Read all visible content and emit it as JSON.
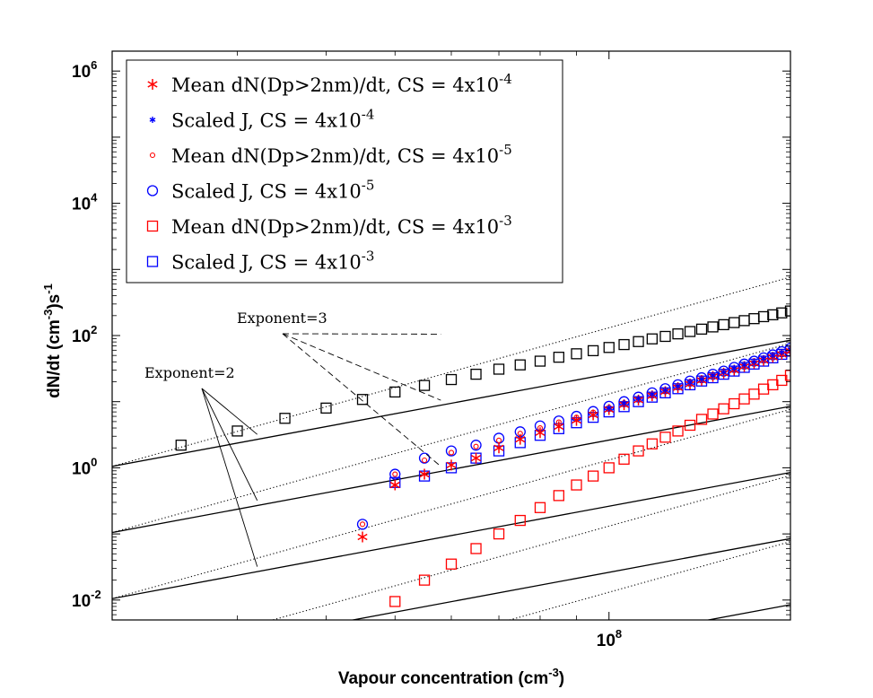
{
  "chart_data": {
    "type": "scatter",
    "xscale": "log",
    "yscale": "log",
    "xlim": [
      20000000,
      180000000
    ],
    "ylim": [
      0.005,
      2000000
    ],
    "xlabel": "Vapour concentration (cm-3)",
    "xlabel_parts": {
      "pre": "Vapour concentration (cm",
      "sup": "-3",
      "post": ")"
    },
    "ylabel": "dN/dt (cm-3)s-1",
    "ylabel_parts": {
      "pre": "dN/dt (cm",
      "sup1": "-3",
      "mid": ")s",
      "sup2": "-1"
    },
    "y_ticks": [
      {
        "value": 0.01,
        "base": "10",
        "exp": "-2"
      },
      {
        "value": 1,
        "base": "10",
        "exp": "0"
      },
      {
        "value": 100,
        "base": "10",
        "exp": "2"
      },
      {
        "value": 10000,
        "base": "10",
        "exp": "4"
      },
      {
        "value": 1000000,
        "base": "10",
        "exp": "6"
      }
    ],
    "x_ticks": [
      {
        "value": 100000000,
        "base": "10",
        "exp": "8"
      }
    ],
    "legend_position": "top-left",
    "series": [
      {
        "name": "Mean dN(Dp>2nm)/dt, CS = 4x10-4",
        "label_pre": "Mean dN(Dp>2nm)/dt, CS = 4x10",
        "label_sup": "-4",
        "marker": "asterisk",
        "color": "#ff0000",
        "x": [
          45000000,
          50000000,
          55000000,
          60000000,
          65000000,
          70000000,
          75000000,
          80000000,
          85000000,
          90000000,
          95000000,
          100000000,
          105000000,
          110000000,
          115000000,
          120000000,
          125000000,
          130000000,
          135000000,
          140000000,
          145000000,
          150000000,
          155000000,
          160000000,
          165000000,
          170000000,
          175000000,
          180000000
        ],
        "y": [
          0.09,
          0.55,
          0.8,
          1.1,
          1.4,
          2.0,
          2.7,
          3.4,
          4.2,
          5.2,
          6.3,
          7.6,
          9.0,
          10.6,
          12.3,
          14.2,
          16.3,
          18.5,
          21,
          24,
          27,
          30,
          34,
          38,
          42,
          47,
          52,
          58
        ]
      },
      {
        "name": "Scaled J, CS = 4x10-4",
        "label_pre": "Scaled J, CS = 4x10",
        "label_sup": "-4",
        "marker": "star",
        "color": "#0000ff",
        "x": [
          100000000,
          105000000,
          110000000,
          115000000,
          120000000,
          125000000,
          130000000,
          135000000,
          140000000,
          145000000,
          150000000,
          155000000,
          160000000,
          165000000,
          170000000,
          175000000,
          180000000
        ],
        "y": [
          8.0,
          9.5,
          11.2,
          13.0,
          15.0,
          17.2,
          19.6,
          22,
          25,
          28,
          32,
          36,
          40,
          45,
          50,
          56,
          62
        ]
      },
      {
        "name": "Mean dN(Dp>2nm)/dt, CS = 4x10-5",
        "label_pre": "Mean dN(Dp>2nm)/dt, CS = 4x10",
        "label_sup": "-5",
        "marker": "small-circle",
        "color": "#ff0000",
        "x": [
          45000000,
          50000000,
          55000000,
          60000000,
          65000000,
          70000000,
          75000000,
          80000000,
          85000000,
          90000000,
          95000000,
          100000000,
          105000000,
          110000000,
          115000000,
          120000000,
          125000000,
          130000000,
          135000000,
          140000000,
          145000000,
          150000000,
          155000000,
          160000000,
          165000000,
          170000000,
          175000000,
          180000000
        ],
        "y": [
          0.14,
          0.8,
          1.3,
          1.7,
          2.1,
          2.6,
          3.3,
          4.0,
          4.9,
          5.8,
          6.9,
          8.2,
          9.6,
          11.2,
          13.0,
          15.0,
          17.2,
          19.6,
          22,
          25,
          28,
          31,
          35,
          39,
          44,
          49,
          55,
          61
        ]
      },
      {
        "name": "Scaled J, CS = 4x10-5",
        "label_pre": "Scaled J, CS = 4x10",
        "label_sup": "-5",
        "marker": "circle",
        "color": "#0000ff",
        "x": [
          45000000,
          50000000,
          55000000,
          60000000,
          65000000,
          70000000,
          75000000,
          80000000,
          85000000,
          90000000,
          95000000,
          100000000,
          105000000,
          110000000,
          115000000,
          120000000,
          125000000,
          130000000,
          135000000,
          140000000,
          145000000,
          150000000,
          155000000,
          160000000,
          165000000,
          170000000,
          175000000,
          180000000
        ],
        "y": [
          0.14,
          0.8,
          1.4,
          1.8,
          2.2,
          2.8,
          3.5,
          4.3,
          5.1,
          6.0,
          7.1,
          8.5,
          10.0,
          11.7,
          13.6,
          15.7,
          18,
          20.5,
          23,
          26,
          29,
          33,
          37,
          41,
          46,
          51,
          57,
          64
        ]
      },
      {
        "name": "Mean dN(Dp>2nm)/dt, CS = 4x10-3",
        "label_pre": "Mean dN(Dp>2nm)/dt, CS = 4x10",
        "label_sup": "-3",
        "marker": "square",
        "color": "#ff0000",
        "x": [
          50000000,
          55000000,
          60000000,
          65000000,
          70000000,
          75000000,
          80000000,
          85000000,
          90000000,
          95000000,
          100000000,
          105000000,
          110000000,
          115000000,
          120000000,
          125000000,
          130000000,
          135000000,
          140000000,
          145000000,
          150000000,
          155000000,
          160000000,
          165000000,
          170000000,
          175000000,
          180000000
        ],
        "y": [
          0.0095,
          0.02,
          0.035,
          0.06,
          0.1,
          0.16,
          0.25,
          0.38,
          0.55,
          0.75,
          1.0,
          1.35,
          1.8,
          2.3,
          2.9,
          3.6,
          4.4,
          5.4,
          6.5,
          7.8,
          9.3,
          11,
          13,
          15.5,
          18,
          21,
          25
        ]
      },
      {
        "name": "Scaled J, CS = 4x10-3",
        "label_pre": "Scaled J, CS = 4x10",
        "label_sup": "-3",
        "marker": "square",
        "color": "#0000ff",
        "x": [
          50000000,
          55000000,
          60000000,
          65000000,
          70000000,
          75000000,
          80000000,
          85000000,
          90000000,
          95000000,
          100000000,
          105000000,
          110000000,
          115000000,
          120000000,
          125000000,
          130000000,
          135000000,
          140000000,
          145000000,
          150000000,
          155000000,
          160000000,
          165000000,
          170000000,
          175000000,
          180000000
        ],
        "y": [
          0.6,
          0.75,
          1.0,
          1.4,
          1.8,
          2.4,
          3.1,
          3.9,
          4.8,
          5.8,
          7.0,
          8.4,
          10.0,
          11.7,
          13.6,
          15.7,
          18,
          20.5,
          23,
          26,
          29,
          33,
          37,
          41,
          46,
          52,
          58
        ]
      },
      {
        "name": "",
        "marker": "square",
        "color": "#000000",
        "show_in_legend": false,
        "x": [
          25000000,
          30000000,
          35000000,
          40000000,
          45000000,
          50000000,
          55000000,
          60000000,
          65000000,
          70000000,
          75000000,
          80000000,
          85000000,
          90000000,
          95000000,
          100000000,
          105000000,
          110000000,
          115000000,
          120000000,
          125000000,
          130000000,
          135000000,
          140000000,
          145000000,
          150000000,
          155000000,
          160000000,
          165000000,
          170000000,
          175000000,
          180000000
        ],
        "y": [
          2.2,
          3.6,
          5.6,
          8.0,
          10.8,
          14.0,
          17.6,
          21.6,
          26,
          31,
          36,
          41,
          47,
          53,
          59,
          66,
          73,
          81,
          89,
          97,
          106,
          115,
          125,
          135,
          146,
          157,
          168,
          180,
          193,
          206,
          220,
          235
        ]
      }
    ],
    "reference_lines": [
      {
        "exponent": 2,
        "style": "solid",
        "anchor_x": 20000000,
        "anchor_y": 1.05
      },
      {
        "exponent": 2,
        "style": "solid",
        "anchor_x": 20000000,
        "anchor_y": 0.105
      },
      {
        "exponent": 2,
        "style": "solid",
        "anchor_x": 20000000,
        "anchor_y": 0.0105
      },
      {
        "exponent": 2,
        "style": "solid",
        "anchor_x": 20000000,
        "anchor_y": 0.00105
      },
      {
        "exponent": 2,
        "style": "solid",
        "anchor_x": 20000000,
        "anchor_y": 0.000105
      },
      {
        "exponent": 3,
        "style": "dotted",
        "anchor_x": 20000000,
        "anchor_y": 1.05
      },
      {
        "exponent": 3,
        "style": "dotted",
        "anchor_x": 20000000,
        "anchor_y": 0.105
      },
      {
        "exponent": 3,
        "style": "dotted",
        "anchor_x": 20000000,
        "anchor_y": 0.0105
      },
      {
        "exponent": 3,
        "style": "dotted",
        "anchor_x": 20000000,
        "anchor_y": 0.00105
      },
      {
        "exponent": 3,
        "style": "dotted",
        "anchor_x": 20000000,
        "anchor_y": 0.000105
      }
    ],
    "annotations": [
      {
        "text": "Exponent=3",
        "style": "dashed",
        "targets": [
          {
            "x": 58000000,
            "y": 105
          },
          {
            "x": 58000000,
            "y": 10.5
          },
          {
            "x": 58000000,
            "y": 1.05
          }
        ]
      },
      {
        "text": "Exponent=2",
        "style": "solid",
        "targets": [
          {
            "x": 32000000,
            "y": 3.2
          },
          {
            "x": 32000000,
            "y": 0.32
          },
          {
            "x": 32000000,
            "y": 0.032
          }
        ]
      }
    ]
  }
}
